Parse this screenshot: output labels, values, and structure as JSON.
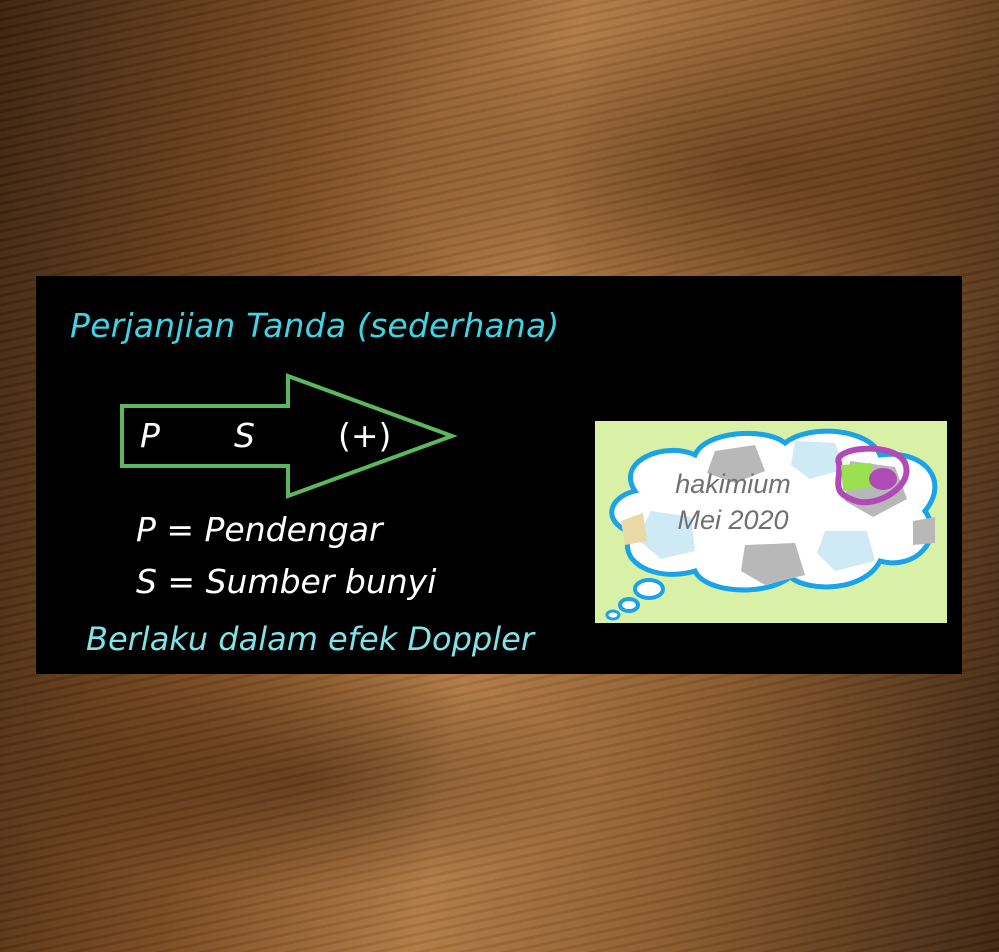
{
  "slide": {
    "title": "Perjanjian Tanda (sederhana)",
    "arrow": {
      "label_p": "P",
      "label_s": "S",
      "sign": "(+)"
    },
    "definitions": [
      {
        "line": "P = Pendengar"
      },
      {
        "line": "S = Sumber bunyi"
      }
    ],
    "note": "Berlaku dalam efek Doppler"
  },
  "stamp": {
    "line1": "hakimium",
    "line2": "Mei 2020"
  },
  "colors": {
    "title": "#3fd3e4",
    "note": "#7fe3e8",
    "arrow_outline": "#5cb85c",
    "board": "#000000",
    "stamp_bg": "#d9f1a6",
    "cloud_outline": "#1aa3e8"
  }
}
